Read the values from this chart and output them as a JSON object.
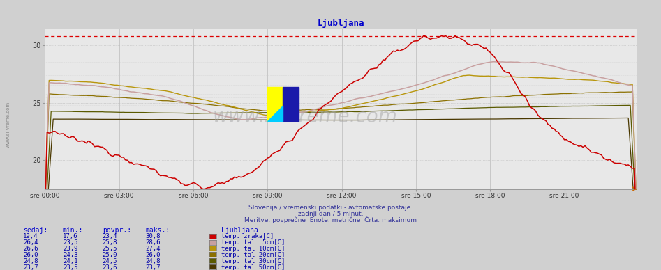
{
  "title": "Ljubljana",
  "title_color": "#0000cc",
  "bg_color": "#d0d0d0",
  "plot_bg_color": "#e8e8e8",
  "x_labels": [
    "sre 00:00",
    "sre 03:00",
    "sre 06:00",
    "sre 09:00",
    "sre 12:00",
    "sre 15:00",
    "sre 18:00",
    "sre 21:00"
  ],
  "x_ticks_idx": [
    0,
    36,
    72,
    108,
    144,
    180,
    216,
    252
  ],
  "n_points": 288,
  "ylim_lo": 17.5,
  "ylim_hi": 31.5,
  "yticks": [
    20,
    25,
    30
  ],
  "max_ref_line": 30.8,
  "footer_lines": [
    "Slovenija / vremenski podatki - avtomatske postaje.",
    "zadnji dan / 5 minut.",
    "Meritve: povprečne  Enote: metrične  Črta: maksimum"
  ],
  "table_headers": [
    "sedaj:",
    "min.:",
    "povpr.:",
    "maks.:"
  ],
  "watermark": "www.si-vreme.com",
  "series_info": [
    {
      "cur": "19,4",
      "mn": "17,6",
      "avg": "23,4",
      "mx": "30,8",
      "color": "#cc0000",
      "label": "temp. zraka[C]"
    },
    {
      "cur": "26,4",
      "mn": "23,5",
      "avg": "25,8",
      "mx": "28,6",
      "color": "#c8a0a0",
      "label": "temp. tal  5cm[C]"
    },
    {
      "cur": "26,6",
      "mn": "23,9",
      "avg": "25,5",
      "mx": "27,4",
      "color": "#b8960c",
      "label": "temp. tal 10cm[C]"
    },
    {
      "cur": "26,0",
      "mn": "24,3",
      "avg": "25,0",
      "mx": "26,0",
      "color": "#8b7000",
      "label": "temp. tal 20cm[C]"
    },
    {
      "cur": "24,8",
      "mn": "24,1",
      "avg": "24,5",
      "mx": "24,8",
      "color": "#5a5a00",
      "label": "temp. tal 30cm[C]"
    },
    {
      "cur": "23,7",
      "mn": "23,5",
      "avg": "23,6",
      "mx": "23,7",
      "color": "#4a3800",
      "label": "temp. tal 50cm[C]"
    }
  ]
}
